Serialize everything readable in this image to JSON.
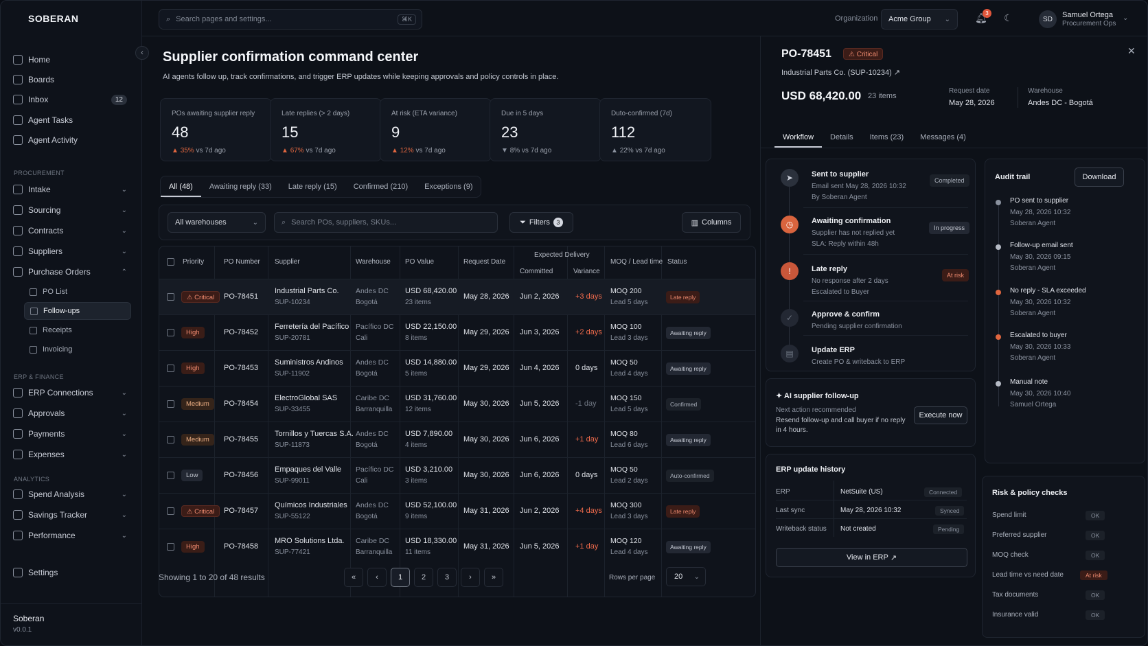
{
  "app": {
    "logo": "SOBERAN",
    "footer_name": "Soberan",
    "footer_version": "v0.0.1"
  },
  "nav": {
    "home": "Home",
    "boards": "Boards",
    "inbox": "Inbox",
    "inbox_count": "12",
    "agent_tasks": "Agent Tasks",
    "agent_activity": "Agent Activity",
    "sec_procurement": "PROCUREMENT",
    "intake": "Intake",
    "sourcing": "Sourcing",
    "contracts": "Contracts",
    "suppliers": "Suppliers",
    "purchase_orders": "Purchase Orders",
    "po_list": "PO List",
    "followups": "Follow-ups",
    "receipts": "Receipts",
    "invoicing": "Invoicing",
    "sec_erp": "ERP & FINANCE",
    "erp_connections": "ERP Connections",
    "approvals": "Approvals",
    "payments": "Payments",
    "expenses": "Expenses",
    "sec_analytics": "ANALYTICS",
    "spend_analysis": "Spend Analysis",
    "savings_tracker": "Savings Tracker",
    "performance": "Performance",
    "settings": "Settings"
  },
  "top": {
    "search_placeholder": "Search pages and settings...",
    "shortcut": "⌘K",
    "org_label": "Organization",
    "org": "Acme Group",
    "notif_count": "3",
    "user_initials": "SD",
    "user_name": "Samuel Ortega",
    "user_role": "Procurement Ops"
  },
  "page": {
    "title": "Supplier confirmation command center",
    "description": "AI agents follow up, track confirmations, and trigger ERP updates while keeping approvals and policy controls in place."
  },
  "stats": [
    {
      "label": "POs awaiting supplier reply",
      "value": "48",
      "change": "35%",
      "suffix": "vs 7d ago"
    },
    {
      "label": "Late replies (> 2 days)",
      "value": "15",
      "change": "67%",
      "suffix": "vs 7d ago"
    },
    {
      "label": "At risk (ETA variance)",
      "value": "9",
      "change": "12%",
      "suffix": "vs 7d ago"
    },
    {
      "label": "Due in 5 days",
      "value": "23",
      "change": "8%",
      "suffix": "vs 7d ago"
    },
    {
      "label": "Duto-confirmed (7d)",
      "value": "112",
      "change": "22%",
      "suffix": "vs 7d ago"
    }
  ],
  "tabs": [
    "All (48)",
    "Awaiting reply (33)",
    "Late reply (15)",
    "Confirmed (210)",
    "Exceptions (9)"
  ],
  "toolbar": {
    "warehouse": "All warehouses",
    "search_placeholder": "Search POs, suppliers, SKUs...",
    "filters": "Filters",
    "filters_count": "3",
    "columns": "Columns"
  },
  "table": {
    "headers": {
      "priority": "Priority",
      "po": "PO Number",
      "supplier": "Supplier",
      "warehouse": "Warehouse",
      "value": "PO Value",
      "request": "Request Date",
      "expected": "Expected Delivery",
      "committed": "Committed",
      "variance": "Variance",
      "moq": "MOQ / Lead time",
      "status": "Status"
    },
    "rows": [
      {
        "priority": "Critical",
        "pclass": "crit",
        "po": "PO-78451",
        "supplier": "Industrial Parts Co.",
        "sid": "SUP-10234",
        "wh": "Andes DC",
        "city": "Bogotá",
        "value": "USD 68,420.00",
        "items": "23 items",
        "request": "May 28, 2026",
        "committed": "Jun 2, 2026",
        "variance": "+3 days",
        "vclass": "vneg",
        "moq": "MOQ 200",
        "lead": "Lead 5 days",
        "status": "Late reply",
        "sclass": "late"
      },
      {
        "priority": "High",
        "pclass": "high",
        "po": "PO-78452",
        "supplier": "Ferretería del Pacífico",
        "sid": "SUP-20781",
        "wh": "Pacífico DC",
        "city": "Cali",
        "value": "USD 22,150.00",
        "items": "8 items",
        "request": "May 29, 2026",
        "committed": "Jun 3, 2026",
        "variance": "+2 days",
        "vclass": "vneg",
        "moq": "MOQ 100",
        "lead": "Lead 3 days",
        "status": "Awaiting reply",
        "sclass": "await"
      },
      {
        "priority": "High",
        "pclass": "high",
        "po": "PO-78453",
        "supplier": "Suministros Andinos",
        "sid": "SUP-11902",
        "wh": "Andes DC",
        "city": "Bogotá",
        "value": "USD 14,880.00",
        "items": "5 items",
        "request": "May 29, 2026",
        "committed": "Jun 4, 2026",
        "variance": "0 days",
        "vclass": "vzero",
        "moq": "MOQ 50",
        "lead": "Lead 4 days",
        "status": "Awaiting reply",
        "sclass": "await"
      },
      {
        "priority": "Medium",
        "pclass": "med",
        "po": "PO-78454",
        "supplier": "ElectroGlobal SAS",
        "sid": "SUP-33455",
        "wh": "Caribe DC",
        "city": "Barranquilla",
        "value": "USD 31,760.00",
        "items": "12 items",
        "request": "May 30, 2026",
        "committed": "Jun 5, 2026",
        "variance": "-1 day",
        "vclass": "vmute",
        "moq": "MOQ 150",
        "lead": "Lead 5 days",
        "status": "Confirmed",
        "sclass": "conf"
      },
      {
        "priority": "Medium",
        "pclass": "med",
        "po": "PO-78455",
        "supplier": "Tornillos y Tuercas S.A.",
        "sid": "SUP-11873",
        "wh": "Andes DC",
        "city": "Bogotá",
        "value": "USD 7,890.00",
        "items": "4 items",
        "request": "May 30, 2026",
        "committed": "Jun 6, 2026",
        "variance": "+1 day",
        "vclass": "vneg",
        "moq": "MOQ 80",
        "lead": "Lead 6 days",
        "status": "Awaiting reply",
        "sclass": "await"
      },
      {
        "priority": "Low",
        "pclass": "low",
        "po": "PO-78456",
        "supplier": "Empaques del Valle",
        "sid": "SUP-99011",
        "wh": "Pacífico DC",
        "city": "Cali",
        "value": "USD 3,210.00",
        "items": "3 items",
        "request": "May 30, 2026",
        "committed": "Jun 6, 2026",
        "variance": "0 days",
        "vclass": "vzero",
        "moq": "MOQ 50",
        "lead": "Lead 2 days",
        "status": "Auto-confirmed",
        "sclass": "auto"
      },
      {
        "priority": "Critical",
        "pclass": "crit",
        "po": "PO-78457",
        "supplier": "Químicos Industriales",
        "sid": "SUP-55122",
        "wh": "Andes DC",
        "city": "Bogotá",
        "value": "USD 52,100.00",
        "items": "9 items",
        "request": "May 31, 2026",
        "committed": "Jun 2, 2026",
        "variance": "+4 days",
        "vclass": "vneg",
        "moq": "MOQ 300",
        "lead": "Lead 3 days",
        "status": "Late reply",
        "sclass": "late"
      },
      {
        "priority": "High",
        "pclass": "high",
        "po": "PO-78458",
        "supplier": "MRO Solutions Ltda.",
        "sid": "SUP-77421",
        "wh": "Caribe DC",
        "city": "Barranquilla",
        "value": "USD 18,330.00",
        "items": "11 items",
        "request": "May 31, 2026",
        "committed": "Jun 5, 2026",
        "variance": "+1 day",
        "vclass": "vneg",
        "moq": "MOQ 120",
        "lead": "Lead 4 days",
        "status": "Awaiting reply",
        "sclass": "await"
      }
    ]
  },
  "pagination": {
    "showing": "Showing 1 to 20 of 48 results",
    "first": "«",
    "prev": "‹",
    "p1": "1",
    "p2": "2",
    "p3": "3",
    "next": "›",
    "last": "»",
    "rows_label": "Rows per page",
    "rows_value": "20"
  },
  "panel": {
    "po": "PO-78451",
    "badge": "Critical",
    "supplier": "Industrial Parts Co. (SUP-10234)",
    "amount": "USD 68,420.00",
    "items": "23 items",
    "request_label": "Request date",
    "request_value": "May 28, 2026",
    "warehouse_label": "Warehouse",
    "warehouse_value": "Andes DC - Bogotá",
    "tabs": [
      "Workflow",
      "Details",
      "Items (23)",
      "Messages (4)"
    ],
    "steps": [
      {
        "title": "Sent to supplier",
        "l1": "Email sent May 28, 2026 10:32",
        "l2": "By Soberan Agent",
        "badge": "Completed"
      },
      {
        "title": "Awaiting confirmation",
        "l1": "Supplier has not replied yet",
        "l2": "SLA: Reply within 48h",
        "badge": "In progress"
      },
      {
        "title": "Late reply",
        "l1": "No response after 2 days",
        "l2": "Escalated to Buyer",
        "badge": "At risk"
      },
      {
        "title": "Approve & confirm",
        "l1": "Pending supplier confirmation",
        "l2": "",
        "badge": ""
      },
      {
        "title": "Update ERP",
        "l1": "Create PO & writeback to ERP",
        "l2": "",
        "badge": ""
      }
    ],
    "ai": {
      "title": "AI supplier follow-up",
      "next": "Next action recommended",
      "text1": "Resend follow-up and call buyer if no reply",
      "text2": "in 4 hours.",
      "button": "Execute now"
    },
    "erp": {
      "title": "ERP update history",
      "rows": [
        {
          "label": "ERP",
          "value": "NetSuite (US)",
          "badge": "Connected"
        },
        {
          "label": "Last sync",
          "value": "May 28, 2026 10:32",
          "badge": "Synced"
        },
        {
          "label": "Writeback status",
          "value": "Not created",
          "badge": "Pending"
        }
      ],
      "button": "View in ERP"
    },
    "audit": {
      "title": "Audit trail",
      "download": "Download",
      "items": [
        {
          "title": "PO sent to supplier",
          "time": "May 28, 2026 10:32",
          "by": "Soberan Agent"
        },
        {
          "title": "Follow-up email sent",
          "time": "May 30, 2026 09:15",
          "by": "Soberan Agent"
        },
        {
          "title": "No reply - SLA exceeded",
          "time": "May 30, 2026 10:32",
          "by": "Soberan Agent"
        },
        {
          "title": "Escalated to buyer",
          "time": "May 30, 2026 10:33",
          "by": "Soberan Agent"
        },
        {
          "title": "Manual note",
          "time": "May 30, 2026 10:40",
          "by": "Samuel Ortega"
        }
      ]
    },
    "risk": {
      "title": "Risk & policy checks",
      "items": [
        {
          "label": "Spend limit",
          "badge": "OK"
        },
        {
          "label": "Preferred supplier",
          "badge": "OK"
        },
        {
          "label": "MOQ check",
          "badge": "OK"
        },
        {
          "label": "Lead time vs need date",
          "badge": "At risk"
        },
        {
          "label": "Tax documents",
          "badge": "OK"
        },
        {
          "label": "Insurance valid",
          "badge": "OK"
        }
      ]
    }
  },
  "colors": {
    "accent": "#e0663f",
    "critical": "#f08b70",
    "bg": "#0d1118"
  }
}
